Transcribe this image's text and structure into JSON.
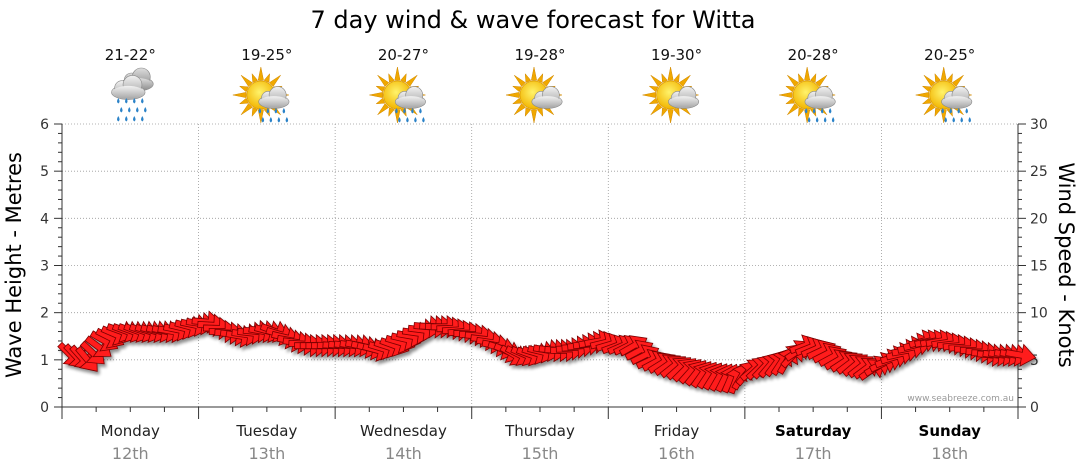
{
  "colors": {
    "arrow_fill": "#ff1a1a",
    "arrow_stroke": "#7a0000",
    "grid": "#9a9a9a",
    "date_text": "#888888",
    "sun": "#f5c400",
    "cloud": "#c9c9c9",
    "rain": "#2a82c8"
  },
  "credit": "www.seabreeze.com.au",
  "chart_data": {
    "type": "line",
    "title": "7 day wind & wave forecast for Witta",
    "ylabel_left": "Wave Height - Metres",
    "ylabel_right": "Wind Speed - Knots",
    "ylim_left": [
      0,
      6
    ],
    "ylim_right": [
      0,
      30
    ],
    "left_ticks": [
      "0",
      "1",
      "2",
      "3",
      "4",
      "5",
      "6"
    ],
    "right_ticks": [
      "0",
      "5",
      "10",
      "15",
      "20",
      "25",
      "30"
    ],
    "grid": true,
    "days": [
      {
        "day": "Monday",
        "date": "12th",
        "temp": "21-22°",
        "icon": "heavy-rain-icon",
        "bold": false
      },
      {
        "day": "Tuesday",
        "date": "13th",
        "temp": "19-25°",
        "icon": "sun-cloud-rain-icon",
        "bold": false
      },
      {
        "day": "Wednesday",
        "date": "14th",
        "temp": "20-27°",
        "icon": "sun-cloud-rain-icon",
        "bold": false
      },
      {
        "day": "Thursday",
        "date": "15th",
        "temp": "19-28°",
        "icon": "partly-cloudy-icon",
        "bold": false
      },
      {
        "day": "Friday",
        "date": "16th",
        "temp": "19-30°",
        "icon": "partly-cloudy-icon",
        "bold": false
      },
      {
        "day": "Saturday",
        "date": "17th",
        "temp": "20-28°",
        "icon": "sun-cloud-rain-icon",
        "bold": true
      },
      {
        "day": "Sunday",
        "date": "18th",
        "temp": "20-25°",
        "icon": "sun-cloud-rain-icon",
        "bold": true
      }
    ],
    "wind_series": {
      "name": "Wind Speed - Knots",
      "unit": "knots",
      "x_hours": [
        0,
        3,
        6,
        9,
        12,
        15,
        18,
        21,
        24,
        27,
        30,
        33,
        36,
        39,
        42,
        45,
        48,
        51,
        54,
        57,
        60,
        63,
        66,
        69,
        72,
        75,
        78,
        81,
        84,
        87,
        90,
        93,
        96,
        99,
        102,
        105,
        108,
        111,
        114,
        117,
        120,
        123,
        126,
        129,
        132,
        135,
        138,
        141,
        144,
        147,
        150,
        153,
        156,
        159,
        162,
        165
      ],
      "speed_knots": [
        5.5,
        5,
        7,
        8,
        8,
        8,
        8,
        8.5,
        9,
        8,
        7.5,
        8,
        8,
        7,
        6.5,
        6.5,
        6.5,
        6.5,
        6,
        6.5,
        7.5,
        8.5,
        8.5,
        8,
        7.5,
        6.5,
        5.5,
        5.5,
        6,
        6,
        6.5,
        7,
        6.5,
        6.5,
        5,
        4.5,
        4,
        3.5,
        3.2,
        3,
        4,
        4.5,
        5,
        6.5,
        6,
        5,
        4.5,
        4,
        5,
        6,
        7,
        7,
        6.5,
        6,
        5.5,
        5.5
      ],
      "direction_deg": [
        315,
        320,
        300,
        290,
        290,
        285,
        280,
        285,
        275,
        270,
        280,
        275,
        290,
        280,
        270,
        270,
        275,
        280,
        285,
        290,
        280,
        275,
        270,
        265,
        275,
        280,
        300,
        290,
        280,
        270,
        265,
        260,
        250,
        240,
        245,
        235,
        225,
        215,
        210,
        200,
        230,
        220,
        210,
        250,
        245,
        240,
        230,
        235,
        250,
        260,
        255,
        260,
        265,
        270,
        275,
        280
      ],
      "time_resolution_hours": 3
    }
  }
}
